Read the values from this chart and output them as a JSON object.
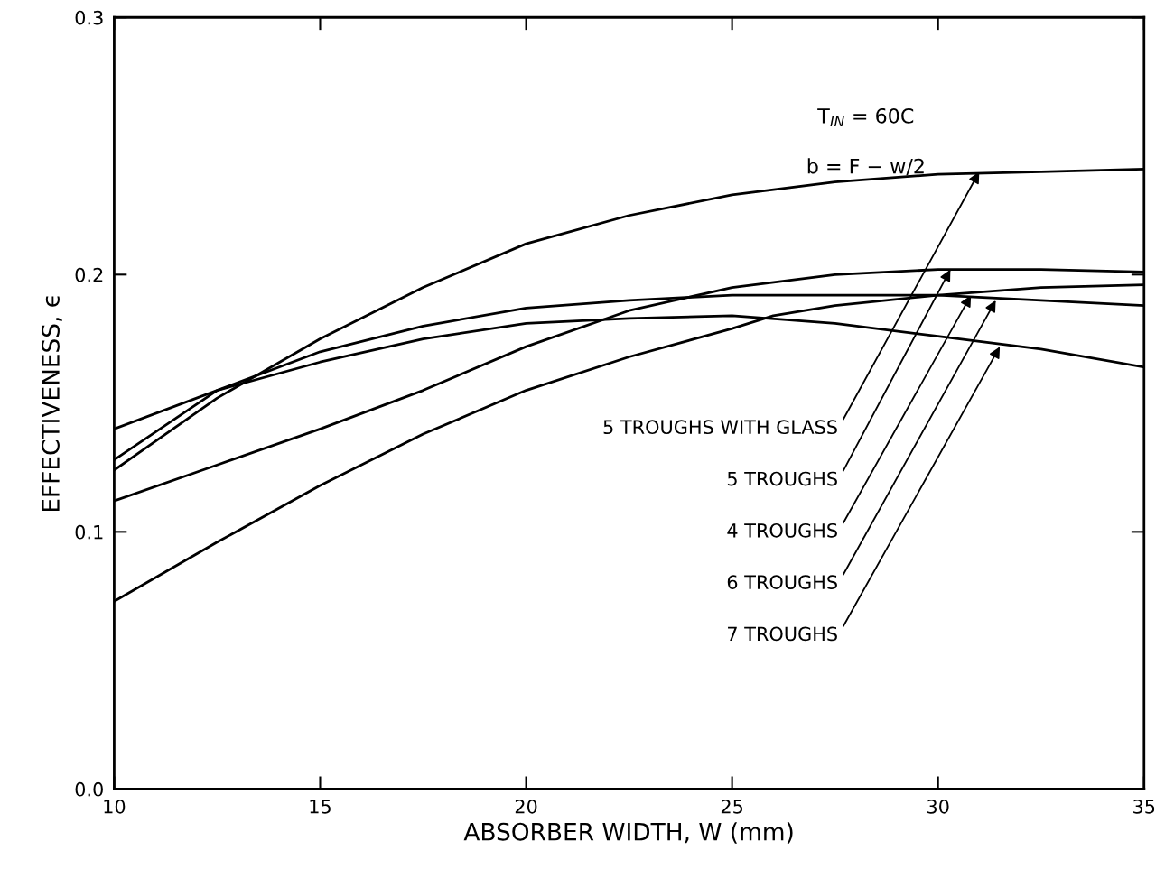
{
  "chart_data": {
    "type": "line",
    "xlabel": "ABSORBER WIDTH, W (mm)",
    "ylabel": "EFFECTIVENESS, ϵ",
    "xlim": [
      10,
      35
    ],
    "ylim": [
      0,
      0.3
    ],
    "xticks": [
      10,
      15,
      20,
      25,
      30,
      35
    ],
    "yticks": [
      {
        "value": 0,
        "label": "0.0"
      },
      {
        "value": 0.1,
        "label": "0.1"
      },
      {
        "value": 0.2,
        "label": "0.2"
      },
      {
        "value": 0.3,
        "label": "0.3"
      }
    ],
    "grid": false,
    "legend": false,
    "marker": "none",
    "line_style": "solid",
    "series": [
      {
        "color": "#000000",
        "x": [
          10,
          12.5,
          15,
          17.5,
          20,
          22.5,
          25,
          27.5,
          30,
          32.5,
          35
        ],
        "values": [
          0.124,
          0.152,
          0.175,
          0.195,
          0.212,
          0.223,
          0.231,
          0.236,
          0.239,
          0.24,
          0.241
        ]
      },
      {
        "color": "#000000",
        "x": [
          10,
          12.5,
          15,
          17.5,
          20,
          22.5,
          25,
          27.5,
          30,
          32.5,
          35
        ],
        "values": [
          0.112,
          0.126,
          0.14,
          0.155,
          0.172,
          0.186,
          0.195,
          0.2,
          0.202,
          0.202,
          0.201
        ]
      },
      {
        "color": "#000000",
        "x": [
          10,
          12.5,
          15,
          17.5,
          20,
          22.5,
          25,
          26,
          27.5,
          30,
          32.5,
          35
        ],
        "values": [
          0.073,
          0.096,
          0.118,
          0.138,
          0.155,
          0.168,
          0.179,
          0.184,
          0.188,
          0.192,
          0.195,
          0.196
        ]
      },
      {
        "color": "#000000",
        "x": [
          10,
          12.5,
          15,
          17.5,
          20,
          22.5,
          25,
          27.5,
          30,
          32.5,
          35
        ],
        "values": [
          0.128,
          0.155,
          0.17,
          0.18,
          0.187,
          0.19,
          0.192,
          0.192,
          0.192,
          0.19,
          0.188
        ]
      },
      {
        "color": "#000000",
        "x": [
          10,
          12.5,
          15,
          17.5,
          20,
          22.5,
          25,
          27.5,
          30,
          32.5,
          35
        ],
        "values": [
          0.14,
          0.155,
          0.166,
          0.175,
          0.181,
          0.183,
          0.184,
          0.181,
          0.176,
          0.171,
          0.164
        ]
      }
    ],
    "annotations": [
      {
        "text": "5 TROUGHS WITH GLASS",
        "x": 31.0,
        "y": 0.24
      },
      {
        "text": "5 TROUGHS",
        "x": 30.3,
        "y": 0.202
      },
      {
        "text": "4 TROUGHS",
        "x": 30.8,
        "y": 0.192
      },
      {
        "text": "6 TROUGHS",
        "x": 31.4,
        "y": 0.19
      },
      {
        "text": "7 TROUGHS",
        "x": 31.5,
        "y": 0.172
      },
      "T$_{IN}$ = 60C",
      "b = F − w/2"
    ]
  }
}
